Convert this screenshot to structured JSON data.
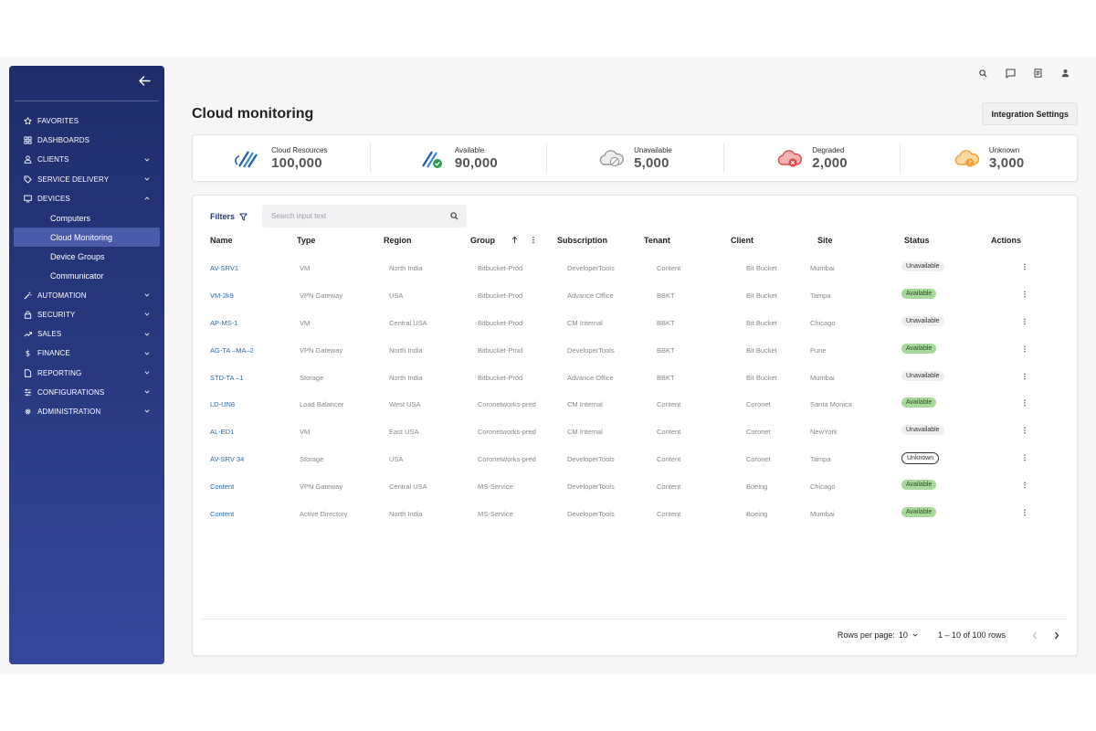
{
  "sidebar": {
    "items": [
      {
        "label": "Favorites",
        "icon": "star-icon",
        "chevron": ""
      },
      {
        "label": "Dashboards",
        "icon": "grid-icon",
        "chevron": ""
      },
      {
        "label": "Clients",
        "icon": "user-icon",
        "chevron": "down"
      },
      {
        "label": "Service Delivery",
        "icon": "tag-icon",
        "chevron": "down"
      },
      {
        "label": "Devices",
        "icon": "monitor-icon",
        "chevron": "up"
      }
    ],
    "sub_items": [
      "Computers",
      "Cloud Monitoring",
      "Device Groups",
      "Communicator"
    ],
    "active_sub": "Cloud Monitoring",
    "items_after": [
      {
        "label": "Automation",
        "icon": "wand-icon",
        "chevron": "down"
      },
      {
        "label": "Security",
        "icon": "lock-icon",
        "chevron": "down"
      },
      {
        "label": "Sales",
        "icon": "trend-icon",
        "chevron": "down"
      },
      {
        "label": "Finance",
        "icon": "dollar-icon",
        "chevron": "down"
      },
      {
        "label": "Reporting",
        "icon": "file-icon",
        "chevron": "down"
      },
      {
        "label": "Configurations",
        "icon": "sliders-icon",
        "chevron": "down"
      },
      {
        "label": "Administration",
        "icon": "cog-icon",
        "chevron": "down"
      }
    ]
  },
  "page": {
    "title": "Cloud monitoring",
    "integration_button": "Integration Settings"
  },
  "stats": [
    {
      "label": "Cloud Resources",
      "value": "100,000",
      "icon": "cloud-resources-icon",
      "color": "#2a6fb5"
    },
    {
      "label": "Available",
      "value": "90,000",
      "icon": "cloud-available-icon",
      "color": "#2e9a4a"
    },
    {
      "label": "Unavailable",
      "value": "5,000",
      "icon": "cloud-unavailable-icon",
      "color": "#9a9a9a"
    },
    {
      "label": "Degraded",
      "value": "2,000",
      "icon": "cloud-degraded-icon",
      "color": "#e04848"
    },
    {
      "label": "Unknown",
      "value": "3,000",
      "icon": "cloud-unknown-icon",
      "color": "#f0a030"
    }
  ],
  "table": {
    "filters_label": "Filters",
    "search_placeholder": "Search input text",
    "columns": [
      "Name",
      "Type",
      "Region",
      "Group",
      "Subscription",
      "Tenant",
      "Client",
      "Site",
      "Status",
      "Actions"
    ],
    "rows": [
      {
        "name": "AV-SRV1",
        "type": "VM",
        "region": "North India",
        "group": "Bitbucket-Prod",
        "subscription": "DeveloperTools",
        "tenant": "Content",
        "client": "Bit Bucket",
        "site": "Mumbai",
        "status": "Unavailable"
      },
      {
        "name": "VM-2k9",
        "type": "VPN Gateway",
        "region": "USA",
        "group": "Bitbucket-Prod",
        "subscription": "Advance Office",
        "tenant": "BBKT",
        "client": "Bit Bucket",
        "site": "Tampa",
        "status": "Available"
      },
      {
        "name": "AP-MS-1",
        "type": "VM",
        "region": "Central USA",
        "group": "Bitbucket-Prod",
        "subscription": "CM Internal",
        "tenant": "BBKT",
        "client": "Bit Bucket",
        "site": "Chicago",
        "status": "Unavailable"
      },
      {
        "name": "AG-TA –MA–2",
        "type": "VPN Gateway",
        "region": "North India",
        "group": "Bitbucket-Prod",
        "subscription": "DeveloperTools",
        "tenant": "BBKT",
        "client": "Bit Bucket",
        "site": "Pune",
        "status": "Available"
      },
      {
        "name": "STD-TA –1",
        "type": "Storage",
        "region": "North India",
        "group": "Bitbucket-Prod",
        "subscription": "Advance Office",
        "tenant": "BBKT",
        "client": "Bit Bucket",
        "site": "Mumbai",
        "status": "Unavailable"
      },
      {
        "name": "LD-UN8",
        "type": "Load Balancer",
        "region": "West USA",
        "group": "Coronetworks-pred",
        "subscription": "CM Internal",
        "tenant": "Content",
        "client": "Coronet",
        "site": "Santa Monica",
        "status": "Available"
      },
      {
        "name": "AL-ED1",
        "type": "VM",
        "region": "East USA",
        "group": "Coronetworks-pred",
        "subscription": "CM Internal",
        "tenant": "Content",
        "client": "Coronet",
        "site": "NewYork",
        "status": "Unavailable"
      },
      {
        "name": "AV-SRV 34",
        "type": "Storage",
        "region": "USA",
        "group": "Coronetworks-pred",
        "subscription": "DeveloperTools",
        "tenant": "Content",
        "client": "Coronet",
        "site": "Tampa",
        "status": "Unknown"
      },
      {
        "name": "Content",
        "type": "VPN Gateway",
        "region": "Central USA",
        "group": "MS-Service",
        "subscription": "DeveloperTools",
        "tenant": "Content",
        "client": "Boeing",
        "site": "Chicago",
        "status": "Available"
      },
      {
        "name": "Content",
        "type": "Active Directory",
        "region": "North India",
        "group": "MS-Service",
        "subscription": "DeveloperTools",
        "tenant": "Content",
        "client": "Boeing",
        "site": "Mumbai",
        "status": "Available"
      }
    ]
  },
  "pagination": {
    "rows_per_page_label": "Rows per page:",
    "rows_per_page_value": "10",
    "range": "1 – 10 of 100 rows"
  },
  "topbar_icons": [
    "search-icon",
    "chat-icon",
    "document-icon",
    "user-icon"
  ]
}
